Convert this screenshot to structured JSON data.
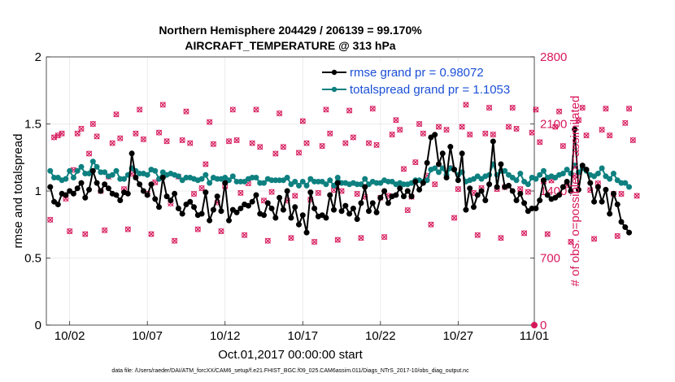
{
  "colors": {
    "rmse": "#000000",
    "spread": "#0e8080",
    "obs": "#d6195c",
    "legend_text": "#1a4fd6",
    "grid": "#e6e6e6"
  },
  "chart_data": {
    "type": "line",
    "title_line1": "Northern Hemisphere 204429 / 206139 = 99.170%",
    "title_line2": "AIRCRAFT_TEMPERATURE @ 313 hPa",
    "xlabel": "Oct.01,2017 00:00:00 start",
    "ylabel_left": "rmse and totalspread",
    "ylabel_right": "# of obs: o=possible; ×=assimilated",
    "xlim": [
      0.5,
      31
    ],
    "ylim_left": [
      0,
      2
    ],
    "ylim_right": [
      0,
      2800
    ],
    "x_ticks": [
      {
        "value": 2,
        "label": "10/02"
      },
      {
        "value": 7,
        "label": "10/07"
      },
      {
        "value": 12,
        "label": "10/12"
      },
      {
        "value": 17,
        "label": "10/17"
      },
      {
        "value": 22,
        "label": "10/22"
      },
      {
        "value": 27,
        "label": "10/27"
      },
      {
        "value": 32,
        "label": "11/01"
      }
    ],
    "y_ticks_left": [
      {
        "value": 0,
        "label": "0"
      },
      {
        "value": 0.5,
        "label": "0.5"
      },
      {
        "value": 1,
        "label": "1"
      },
      {
        "value": 1.5,
        "label": "1.5"
      },
      {
        "value": 2,
        "label": "2"
      }
    ],
    "y_ticks_right": [
      {
        "value": 0,
        "label": "0"
      },
      {
        "value": 700,
        "label": "700"
      },
      {
        "value": 1400,
        "label": "1400"
      },
      {
        "value": 2100,
        "label": "2100"
      },
      {
        "value": 2800,
        "label": "2800"
      }
    ],
    "x_start": 0.75,
    "x_step": 0.25,
    "series": [
      {
        "name": "rmse grand pr = 0.98072",
        "axis": "left",
        "values": [
          1.03,
          0.92,
          0.9,
          0.98,
          0.97,
          1.0,
          0.98,
          1.02,
          1.06,
          0.95,
          1.01,
          1.15,
          1.06,
          1.0,
          1.05,
          1.02,
          0.98,
          0.97,
          0.93,
          0.99,
          0.98,
          1.28,
          1.1,
          1.05,
          1.0,
          0.97,
          1.05,
          0.94,
          0.88,
          1.1,
          0.96,
          0.93,
          0.98,
          0.87,
          0.83,
          0.9,
          0.92,
          0.88,
          0.82,
          0.83,
          0.99,
          0.78,
          0.86,
          0.96,
          0.85,
          1.06,
          0.78,
          0.86,
          0.84,
          0.87,
          0.9,
          0.89,
          0.92,
          0.97,
          0.83,
          0.82,
          0.91,
          0.87,
          0.8,
          0.95,
          0.86,
          1.0,
          0.8,
          0.88,
          0.75,
          0.82,
          0.69,
          0.99,
          0.87,
          0.81,
          0.82,
          0.8,
          0.97,
          0.86,
          1.06,
          0.85,
          0.89,
          0.83,
          0.87,
          0.79,
          0.91,
          1.03,
          0.85,
          0.91,
          0.84,
          0.95,
          1.0,
          0.91,
          0.96,
          0.97,
          1.02,
          0.96,
          1.0,
          0.96,
          1.07,
          1.01,
          1.06,
          1.21,
          1.4,
          1.42,
          1.2,
          1.28,
          1.1,
          1.33,
          1.16,
          1.08,
          1.28,
          0.86,
          1.02,
          0.88,
          0.97,
          1.0,
          0.93,
          1.05,
          1.37,
          1.03,
          1.2,
          1.03,
          1.04,
          1.0,
          0.93,
          0.98,
          0.91,
          0.85,
          0.87,
          0.87,
          0.93,
          1.08,
          0.97,
          0.94,
          0.95,
          0.97,
          1.03,
          1.07,
          1.0,
          1.46,
          1.01,
          1.19,
          1.16,
          1.06,
          0.92,
          1.03,
          0.92,
          1.01,
          0.83,
          0.98,
          0.9,
          0.77,
          0.73,
          0.69
        ]
      },
      {
        "name": "totalspread grand pr = 1.1053",
        "axis": "left",
        "values": [
          1.15,
          1.1,
          1.1,
          1.08,
          1.09,
          1.15,
          1.1,
          1.15,
          1.18,
          1.13,
          1.13,
          1.22,
          1.18,
          1.14,
          1.14,
          1.11,
          1.12,
          1.15,
          1.09,
          1.09,
          1.12,
          1.17,
          1.15,
          1.13,
          1.13,
          1.12,
          1.16,
          1.15,
          1.09,
          1.14,
          1.12,
          1.13,
          1.12,
          1.11,
          1.08,
          1.1,
          1.1,
          1.09,
          1.08,
          1.09,
          1.12,
          1.06,
          1.1,
          1.09,
          1.09,
          1.1,
          1.08,
          1.11,
          1.07,
          1.07,
          1.07,
          1.09,
          1.1,
          1.1,
          1.06,
          1.06,
          1.09,
          1.08,
          1.08,
          1.08,
          1.08,
          1.1,
          1.05,
          1.07,
          1.04,
          1.07,
          1.04,
          1.09,
          1.07,
          1.07,
          1.07,
          1.05,
          1.08,
          1.04,
          1.1,
          1.06,
          1.06,
          1.05,
          1.06,
          1.05,
          1.05,
          1.09,
          1.05,
          1.07,
          1.06,
          1.06,
          1.08,
          1.07,
          1.07,
          1.05,
          1.06,
          1.05,
          1.05,
          1.06,
          1.08,
          1.08,
          1.07,
          1.08,
          1.16,
          1.17,
          1.14,
          1.17,
          1.12,
          1.17,
          1.16,
          1.12,
          1.14,
          1.07,
          1.08,
          1.09,
          1.11,
          1.09,
          1.11,
          1.12,
          1.2,
          1.12,
          1.15,
          1.15,
          1.12,
          1.1,
          1.08,
          1.13,
          1.07,
          1.05,
          1.1,
          1.09,
          1.12,
          1.15,
          1.1,
          1.11,
          1.1,
          1.12,
          1.13,
          1.16,
          1.13,
          1.19,
          1.14,
          1.17,
          1.15,
          1.12,
          1.11,
          1.13,
          1.17,
          1.11,
          1.09,
          1.13,
          1.08,
          1.06,
          1.06,
          1.03
        ]
      }
    ],
    "obs_counts": [
      1100,
      1960,
      1980,
      2000,
      1320,
      980,
      1620,
      2000,
      2050,
      950,
      1790,
      2100,
      1970,
      1400,
      990,
      1550,
      1900,
      2200,
      1950,
      1420,
      1000,
      1580,
      2000,
      2250,
      1940,
      1370,
      950,
      1490,
      2010,
      2300,
      1920,
      1270,
      880,
      1550,
      1930,
      2230,
      1900,
      1370,
      1000,
      1430,
      1680,
      2120,
      1890,
      1280,
      980,
      1450,
      1920,
      2250,
      1930,
      1380,
      940,
      1480,
      1900,
      2250,
      1860,
      1300,
      880,
      1390,
      1790,
      2210,
      1860,
      1300,
      910,
      1350,
      1800,
      2130,
      1900,
      1310,
      870,
      1380,
      1870,
      2250,
      2000,
      1410,
      890,
      1400,
      1900,
      2240,
      1960,
      1370,
      910,
      1340,
      1900,
      2260,
      1880,
      1330,
      920,
      1350,
      1990,
      2140,
      2040,
      1630,
      1200,
      1340,
      1700,
      2100,
      2000,
      1560,
      1050,
      1470,
      2070,
      2430,
      2040,
      1640,
      1120,
      1420,
      2070,
      2300,
      1990,
      1380,
      940,
      1430,
      2000,
      2270,
      1990,
      1420,
      910,
      1440,
      2070,
      2270,
      2050,
      1420,
      960,
      1390,
      2010,
      2250,
      1910,
      1500,
      950,
      1510,
      2070,
      2230,
      1870,
      1460,
      870,
      1560,
      2140,
      2270,
      1980,
      1410,
      900,
      1480,
      2040,
      2260,
      1980,
      1370,
      930,
      1370,
      2110,
      2260,
      1930,
      1350
    ]
  },
  "footer": "data file: /Users/raeder/DAI/ATM_forcXX/CAM6_setup/f.e21.FHIST_BGC.f09_025.CAM6assim.011/Diags_NTrS_2017-10/obs_diag_output.nc"
}
